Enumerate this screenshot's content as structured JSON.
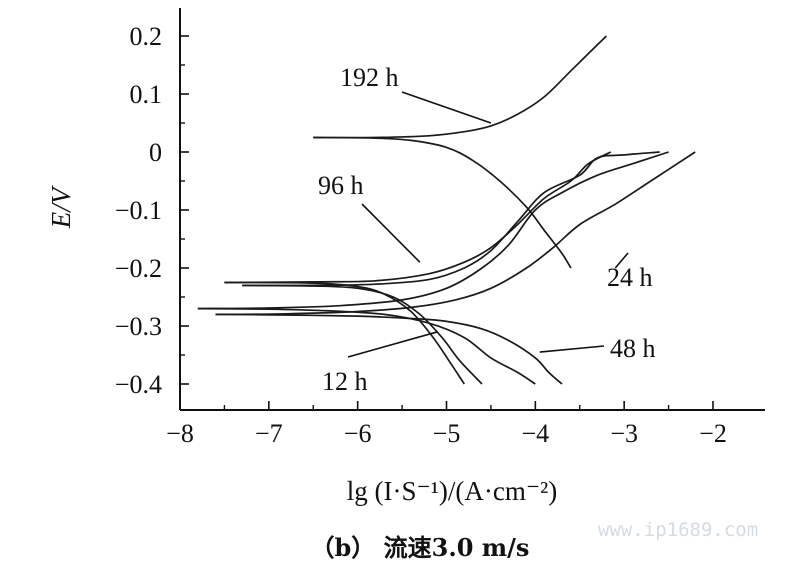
{
  "chart_data": {
    "type": "line",
    "title": "",
    "xlabel": "lg (I·S⁻¹)/(A·cm⁻²)",
    "ylabel": "E/V",
    "xlim": [
      -8,
      -1.5
    ],
    "ylim": [
      -0.43,
      0.26
    ],
    "x_ticks": [
      -8,
      -7,
      -6,
      -5,
      -4,
      -3,
      -2
    ],
    "y_ticks": [
      -0.4,
      -0.3,
      -0.2,
      -0.1,
      0,
      0.1,
      0.2
    ],
    "x_tick_labels": [
      "−8",
      "−7",
      "−6",
      "−5",
      "−4",
      "−3",
      "−2"
    ],
    "y_tick_labels": [
      "−0.4",
      "−0.3",
      "−0.2",
      "−0.1",
      "0",
      "0.1",
      "0.2"
    ],
    "grid": false,
    "series": [
      {
        "name": "192 h",
        "anodic": [
          [
            -6.5,
            0.025
          ],
          [
            -5.8,
            0.025
          ],
          [
            -5.2,
            0.028
          ],
          [
            -4.8,
            0.035
          ],
          [
            -4.5,
            0.045
          ],
          [
            -4.2,
            0.065
          ],
          [
            -3.9,
            0.095
          ],
          [
            -3.6,
            0.14
          ],
          [
            -3.4,
            0.17
          ],
          [
            -3.2,
            0.2
          ]
        ],
        "cathodic": [
          [
            -6.5,
            0.025
          ],
          [
            -5.8,
            0.024
          ],
          [
            -5.4,
            0.02
          ],
          [
            -5.0,
            0.008
          ],
          [
            -4.7,
            -0.015
          ],
          [
            -4.4,
            -0.05
          ],
          [
            -4.1,
            -0.095
          ],
          [
            -3.9,
            -0.135
          ],
          [
            -3.7,
            -0.175
          ],
          [
            -3.6,
            -0.2
          ]
        ]
      },
      {
        "name": "96 h",
        "anodic": [
          [
            -7.5,
            -0.225
          ],
          [
            -6.5,
            -0.224
          ],
          [
            -5.8,
            -0.222
          ],
          [
            -5.2,
            -0.21
          ],
          [
            -4.8,
            -0.19
          ],
          [
            -4.5,
            -0.165
          ],
          [
            -4.2,
            -0.125
          ],
          [
            -3.9,
            -0.08
          ],
          [
            -3.6,
            -0.05
          ],
          [
            -3.4,
            -0.02
          ],
          [
            -3.15,
            0
          ]
        ],
        "cathodic": [
          [
            -7.5,
            -0.225
          ],
          [
            -6.5,
            -0.226
          ],
          [
            -6.0,
            -0.232
          ],
          [
            -5.7,
            -0.245
          ],
          [
            -5.4,
            -0.275
          ],
          [
            -5.15,
            -0.32
          ],
          [
            -4.95,
            -0.365
          ],
          [
            -4.8,
            -0.4
          ]
        ]
      },
      {
        "name": "24 h",
        "anodic": [
          [
            -7.3,
            -0.23
          ],
          [
            -6.5,
            -0.23
          ],
          [
            -5.8,
            -0.228
          ],
          [
            -5.2,
            -0.22
          ],
          [
            -4.8,
            -0.2
          ],
          [
            -4.5,
            -0.17
          ],
          [
            -4.2,
            -0.12
          ],
          [
            -3.9,
            -0.07
          ],
          [
            -3.5,
            -0.04
          ],
          [
            -3.3,
            -0.01
          ],
          [
            -3.0,
            -0.005
          ],
          [
            -2.6,
            0
          ]
        ],
        "cathodic": [
          [
            -7.3,
            -0.23
          ],
          [
            -6.5,
            -0.231
          ],
          [
            -6.0,
            -0.235
          ],
          [
            -5.6,
            -0.25
          ],
          [
            -5.3,
            -0.28
          ],
          [
            -5.05,
            -0.32
          ],
          [
            -4.85,
            -0.36
          ],
          [
            -4.6,
            -0.4
          ]
        ]
      },
      {
        "name": "12 h",
        "anodic": [
          [
            -7.8,
            -0.27
          ],
          [
            -7.0,
            -0.269
          ],
          [
            -6.2,
            -0.265
          ],
          [
            -5.5,
            -0.255
          ],
          [
            -5.0,
            -0.235
          ],
          [
            -4.6,
            -0.2
          ],
          [
            -4.3,
            -0.16
          ],
          [
            -4.0,
            -0.1
          ],
          [
            -3.7,
            -0.07
          ],
          [
            -3.3,
            -0.04
          ],
          [
            -2.9,
            -0.02
          ],
          [
            -2.5,
            0
          ]
        ],
        "cathodic": [
          [
            -7.8,
            -0.27
          ],
          [
            -7.0,
            -0.271
          ],
          [
            -6.3,
            -0.274
          ],
          [
            -5.7,
            -0.28
          ],
          [
            -5.2,
            -0.295
          ],
          [
            -4.8,
            -0.32
          ],
          [
            -4.5,
            -0.355
          ],
          [
            -4.2,
            -0.38
          ],
          [
            -4.0,
            -0.4
          ]
        ]
      },
      {
        "name": "48 h",
        "anodic": [
          [
            -7.6,
            -0.28
          ],
          [
            -6.8,
            -0.279
          ],
          [
            -6.0,
            -0.275
          ],
          [
            -5.4,
            -0.268
          ],
          [
            -4.9,
            -0.255
          ],
          [
            -4.5,
            -0.235
          ],
          [
            -4.1,
            -0.2
          ],
          [
            -3.8,
            -0.165
          ],
          [
            -3.5,
            -0.125
          ],
          [
            -3.1,
            -0.09
          ],
          [
            -2.7,
            -0.05
          ],
          [
            -2.2,
            0
          ]
        ],
        "cathodic": [
          [
            -7.6,
            -0.28
          ],
          [
            -6.8,
            -0.281
          ],
          [
            -6.0,
            -0.283
          ],
          [
            -5.4,
            -0.287
          ],
          [
            -5.0,
            -0.292
          ],
          [
            -4.6,
            -0.305
          ],
          [
            -4.3,
            -0.325
          ],
          [
            -4.0,
            -0.355
          ],
          [
            -3.85,
            -0.38
          ],
          [
            -3.7,
            -0.4
          ]
        ]
      }
    ],
    "annotations": [
      {
        "text": "192 h",
        "x": -4.5,
        "y": 0.05
      },
      {
        "text": "96 h",
        "x": -5.3,
        "y": -0.19
      },
      {
        "text": "24 h",
        "x": -3.1,
        "y": -0.2
      },
      {
        "text": "48 h",
        "x": -3.95,
        "y": -0.345
      },
      {
        "text": "12 h",
        "x": -5.1,
        "y": -0.31
      }
    ]
  },
  "caption": "（b） 流速3.0 m/s",
  "watermark": "www.ip1689.com"
}
